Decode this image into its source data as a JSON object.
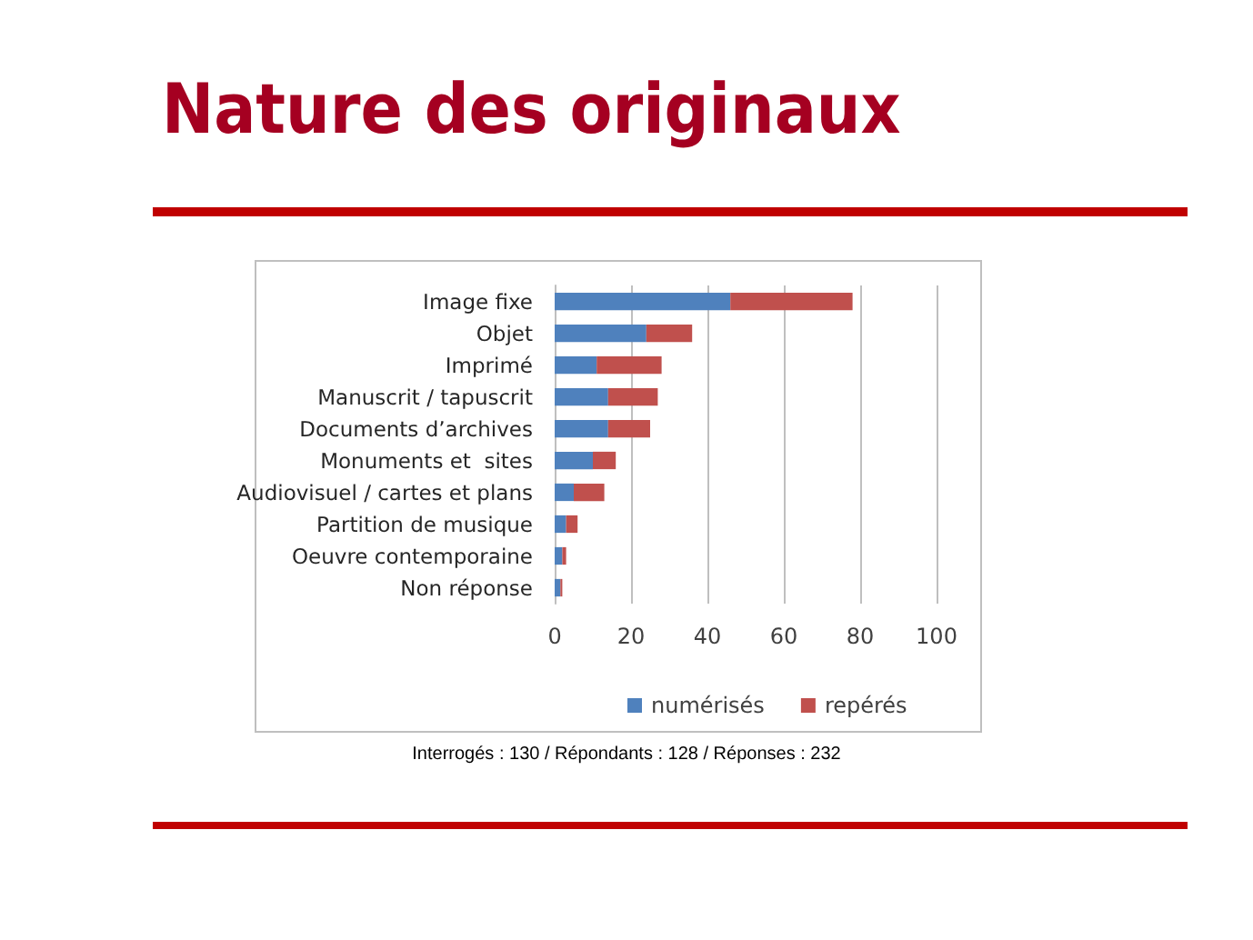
{
  "chart_data": {
    "type": "bar",
    "orientation": "horizontal",
    "stacked": true,
    "title": "Nature des originaux",
    "categories": [
      "Image fixe",
      "Objet",
      "Imprimé",
      "Manuscrit / tapuscrit",
      "Documents d’archives",
      "Monuments et  sites",
      "Audiovisuel / cartes et plans",
      "Partition de musique",
      "Oeuvre contemporaine",
      "Non réponse"
    ],
    "series": [
      {
        "name": "numérisés",
        "color": "#4f81bd",
        "values": [
          46,
          24,
          11,
          14,
          14,
          10,
          5,
          3,
          2,
          1.5
        ]
      },
      {
        "name": "repérés",
        "color": "#c0504d",
        "values": [
          32,
          12,
          17,
          13,
          11,
          6,
          8,
          3,
          1,
          0.5
        ]
      }
    ],
    "xlim": [
      0,
      100
    ],
    "xticks": [
      0,
      20,
      40,
      60,
      80,
      100
    ],
    "grid": "x",
    "legend": "bottom",
    "annotations": [
      "Interrogés : 130 / Répondants : 128 / Réponses : 232"
    ]
  }
}
